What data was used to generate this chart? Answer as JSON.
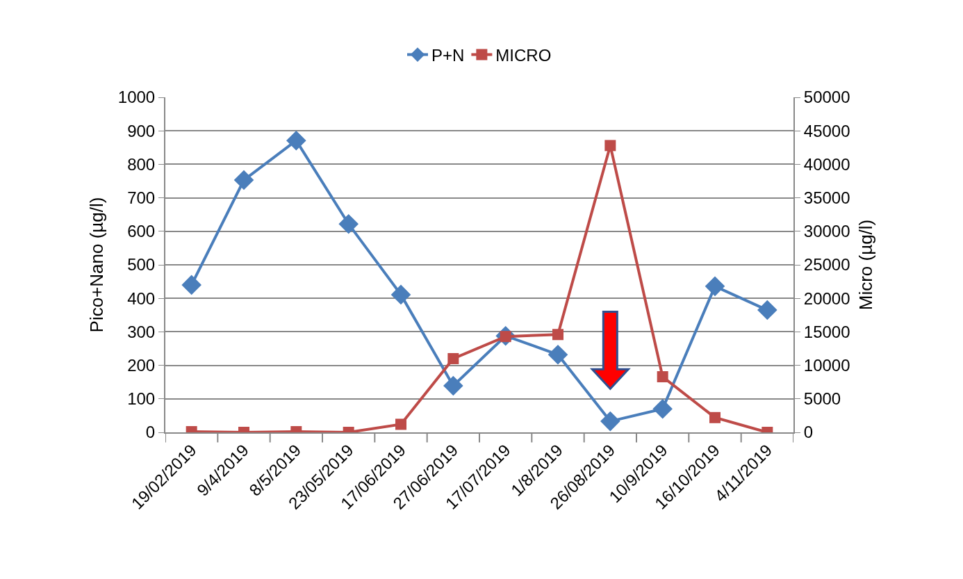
{
  "chart_data": {
    "type": "line",
    "ylabel": "Pico+Nano (µg/l)",
    "y2label": "Micro (µg/l)",
    "categories": [
      "19/02/2019",
      "9/4/2019",
      "8/5/2019",
      "23/05/2019",
      "17/06/2019",
      "27/06/2019",
      "17/07/2019",
      "1/8/2019",
      "26/08/2019",
      "10/9/2019",
      "16/10/2019",
      "4/11/2019"
    ],
    "series": [
      {
        "name": "P+N",
        "color": "#4a7ebb",
        "marker": "diamond",
        "values": [
          440,
          753,
          871,
          622,
          411,
          139,
          288,
          232,
          33,
          70,
          436,
          365
        ]
      },
      {
        "name": "MICRO",
        "color": "#be4b48",
        "marker": "square",
        "axis": "y2",
        "values": [
          100,
          0,
          100,
          0,
          1200,
          11000,
          14300,
          14600,
          42800,
          8300,
          2200,
          0
        ]
      }
    ],
    "ylim": [
      0,
      1000
    ],
    "yticks": [
      0,
      100,
      200,
      300,
      400,
      500,
      600,
      700,
      800,
      900,
      1000
    ],
    "y2lim": [
      0,
      50000
    ],
    "y2ticks": [
      0,
      5000,
      10000,
      15000,
      20000,
      25000,
      30000,
      35000,
      40000,
      45000,
      50000
    ],
    "grid": "y",
    "legend": "top",
    "line_style": "solid"
  }
}
